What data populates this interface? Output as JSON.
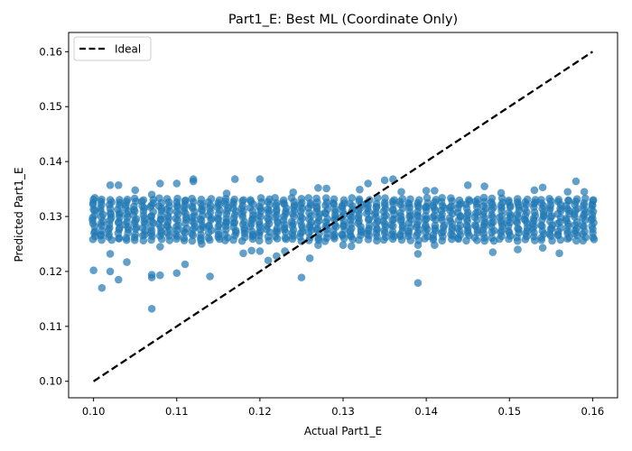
{
  "chart_data": {
    "type": "scatter",
    "title": "Part1_E: Best ML (Coordinate Only)",
    "xlabel": "Actual Part1_E",
    "ylabel": "Predicted Part1_E",
    "xlim": [
      0.097,
      0.163
    ],
    "ylim": [
      0.097,
      0.1635
    ],
    "xticks": [
      "0.10",
      "0.11",
      "0.12",
      "0.13",
      "0.14",
      "0.15",
      "0.16"
    ],
    "yticks": [
      "0.10",
      "0.11",
      "0.12",
      "0.13",
      "0.14",
      "0.15",
      "0.16"
    ],
    "grid": false,
    "legend": {
      "position": "upper-left",
      "entries": [
        "Ideal"
      ]
    },
    "ideal_line": {
      "name": "Ideal",
      "x": [
        0.1,
        0.16
      ],
      "y": [
        0.1,
        0.16
      ],
      "style": "dashed",
      "color": "#000000"
    },
    "scatter_color": "#1f77b4",
    "scatter_alpha": 0.7,
    "x_values": [
      0.1,
      0.101,
      0.102,
      0.103,
      0.104,
      0.105,
      0.106,
      0.107,
      0.108,
      0.109,
      0.11,
      0.111,
      0.112,
      0.113,
      0.114,
      0.115,
      0.116,
      0.117,
      0.118,
      0.119,
      0.12,
      0.121,
      0.122,
      0.123,
      0.124,
      0.125,
      0.126,
      0.127,
      0.128,
      0.129,
      0.13,
      0.131,
      0.132,
      0.133,
      0.134,
      0.135,
      0.136,
      0.137,
      0.138,
      0.139,
      0.14,
      0.141,
      0.142,
      0.143,
      0.144,
      0.145,
      0.146,
      0.147,
      0.148,
      0.149,
      0.15,
      0.151,
      0.152,
      0.153,
      0.154,
      0.155,
      0.156,
      0.157,
      0.158,
      0.159,
      0.16
    ],
    "y_cluster": {
      "center": 0.1295,
      "min": 0.1255,
      "max": 0.1335,
      "points_per_x": 14
    },
    "points": [
      [
        0.1,
        0.1331
      ],
      [
        0.1,
        0.1202
      ],
      [
        0.101,
        0.117
      ],
      [
        0.102,
        0.1357
      ],
      [
        0.102,
        0.12
      ],
      [
        0.102,
        0.1232
      ],
      [
        0.103,
        0.1357
      ],
      [
        0.103,
        0.1185
      ],
      [
        0.104,
        0.1217
      ],
      [
        0.105,
        0.1348
      ],
      [
        0.107,
        0.134
      ],
      [
        0.107,
        0.1194
      ],
      [
        0.107,
        0.1189
      ],
      [
        0.107,
        0.1132
      ],
      [
        0.108,
        0.136
      ],
      [
        0.108,
        0.1245
      ],
      [
        0.108,
        0.1193
      ],
      [
        0.11,
        0.136
      ],
      [
        0.11,
        0.1197
      ],
      [
        0.111,
        0.1213
      ],
      [
        0.112,
        0.1368
      ],
      [
        0.112,
        0.1364
      ],
      [
        0.113,
        0.125
      ],
      [
        0.114,
        0.1191
      ],
      [
        0.116,
        0.1342
      ],
      [
        0.117,
        0.1368
      ],
      [
        0.118,
        0.1233
      ],
      [
        0.119,
        0.1238
      ],
      [
        0.12,
        0.1368
      ],
      [
        0.12,
        0.1237
      ],
      [
        0.121,
        0.122
      ],
      [
        0.122,
        0.1228
      ],
      [
        0.123,
        0.1237
      ],
      [
        0.124,
        0.1344
      ],
      [
        0.125,
        0.1189
      ],
      [
        0.126,
        0.1224
      ],
      [
        0.127,
        0.1352
      ],
      [
        0.127,
        0.1248
      ],
      [
        0.128,
        0.1351
      ],
      [
        0.13,
        0.1248
      ],
      [
        0.131,
        0.1246
      ],
      [
        0.132,
        0.1349
      ],
      [
        0.133,
        0.136
      ],
      [
        0.135,
        0.1366
      ],
      [
        0.136,
        0.1368
      ],
      [
        0.137,
        0.1345
      ],
      [
        0.139,
        0.1248
      ],
      [
        0.139,
        0.1232
      ],
      [
        0.139,
        0.1179
      ],
      [
        0.14,
        0.1347
      ],
      [
        0.141,
        0.1248
      ],
      [
        0.141,
        0.1347
      ],
      [
        0.145,
        0.1357
      ],
      [
        0.147,
        0.1355
      ],
      [
        0.148,
        0.1235
      ],
      [
        0.149,
        0.1343
      ],
      [
        0.151,
        0.124
      ],
      [
        0.153,
        0.1348
      ],
      [
        0.154,
        0.1353
      ],
      [
        0.154,
        0.1243
      ],
      [
        0.156,
        0.1233
      ],
      [
        0.157,
        0.1345
      ],
      [
        0.158,
        0.1364
      ],
      [
        0.159,
        0.1345
      ],
      [
        0.16,
        0.132
      ]
    ]
  }
}
